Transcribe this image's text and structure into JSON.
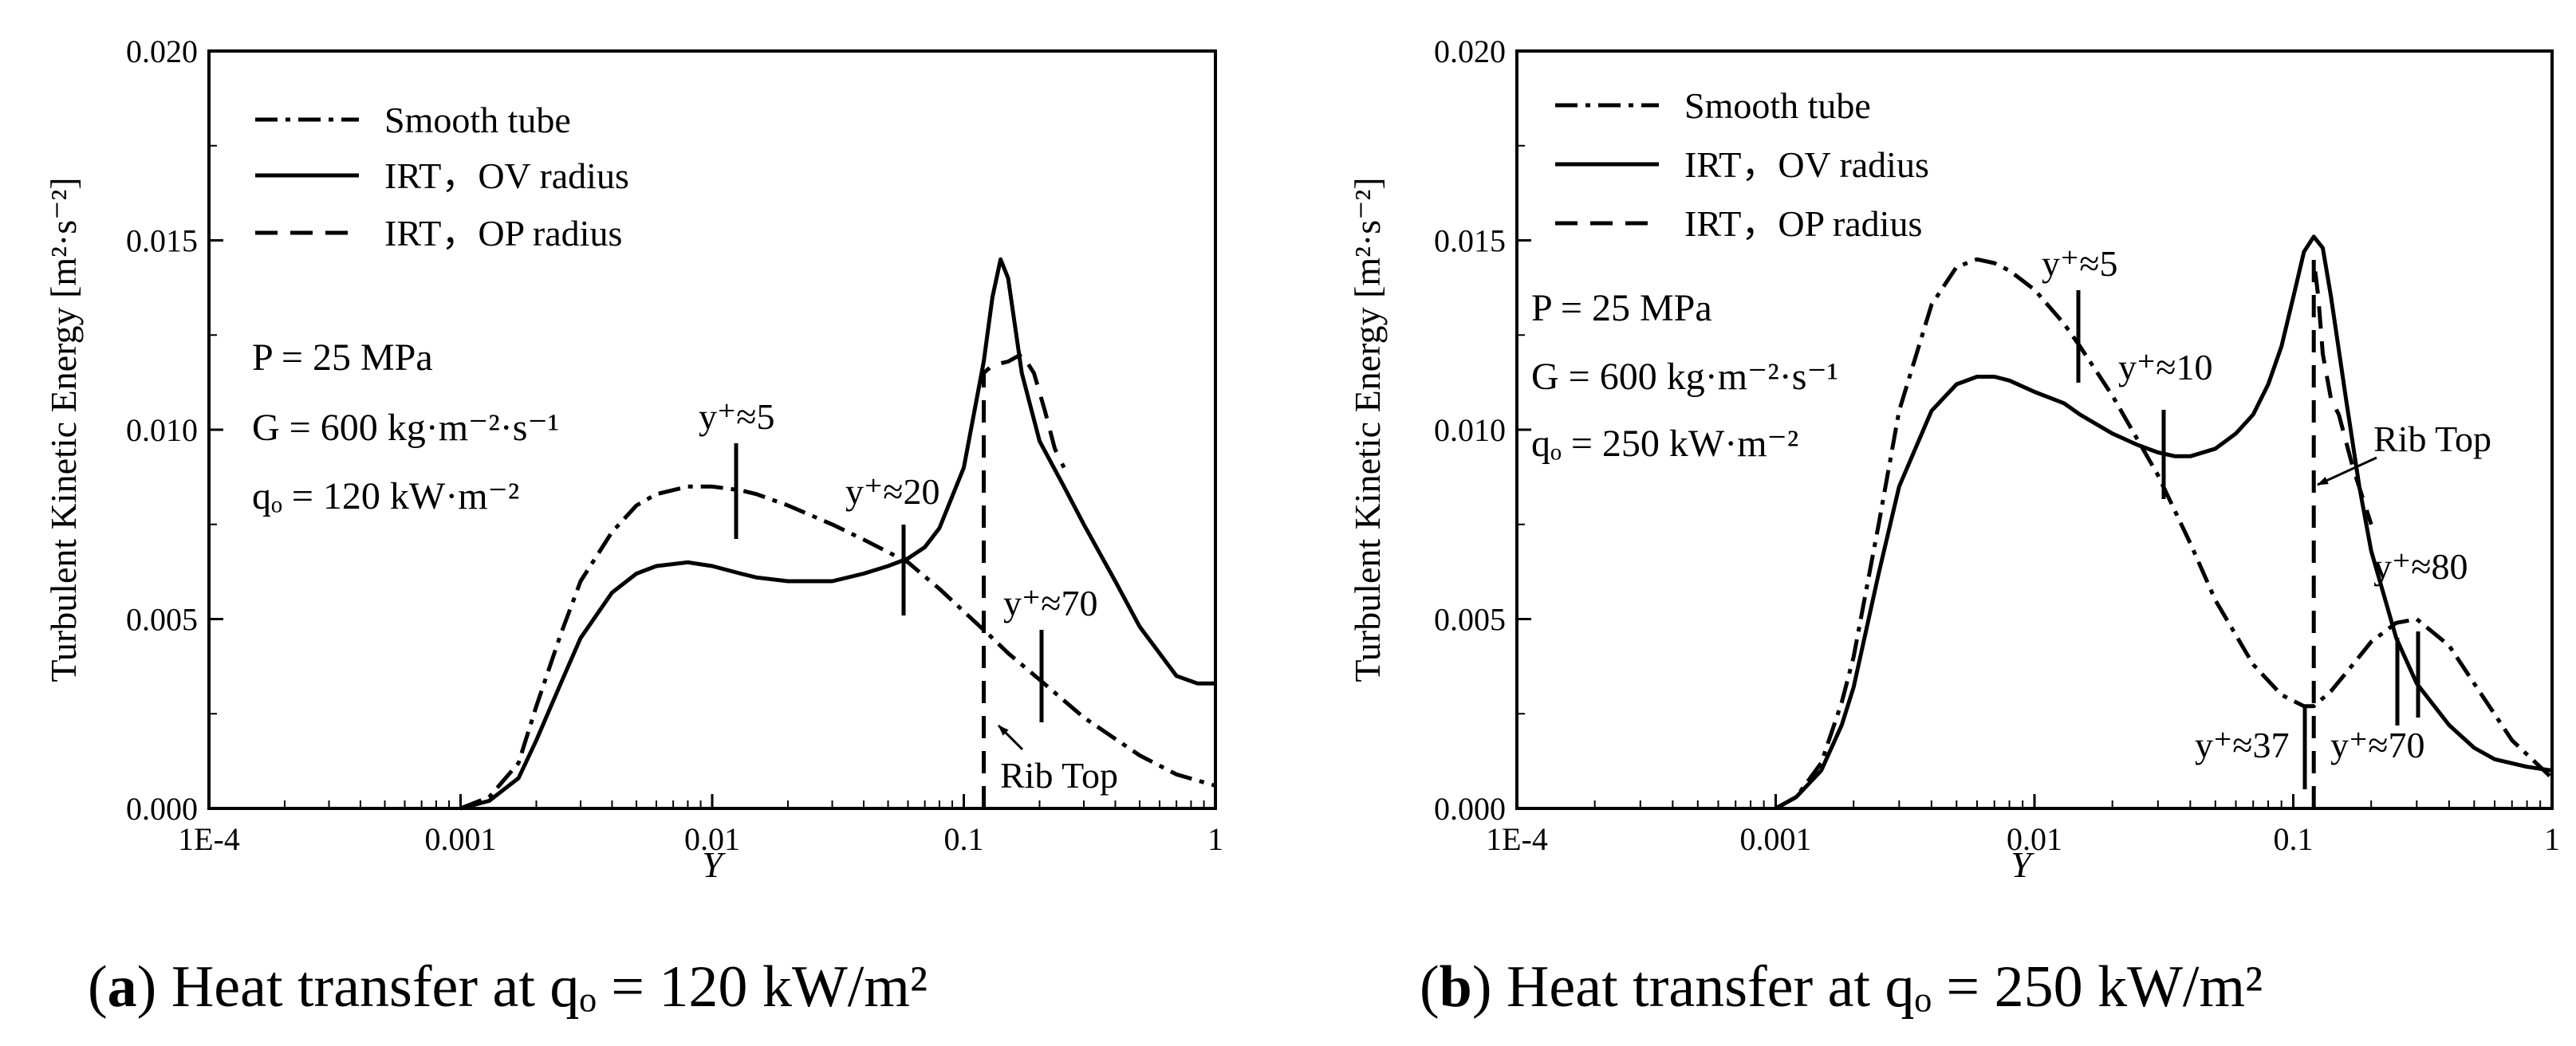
{
  "chart_data": [
    {
      "type": "line",
      "panel_label": "a",
      "caption": "Heat transfer at qₒ = 120 kW/m²",
      "xscale": "log",
      "xlim": [
        0.0001,
        1
      ],
      "ylim": [
        0.0,
        0.02
      ],
      "xticks": [
        0.0001,
        0.001,
        0.01,
        0.1,
        1
      ],
      "xtick_labels": [
        "1E-4",
        "0.001",
        "0.01",
        "0.1",
        "1"
      ],
      "yticks": [
        0.0,
        0.005,
        0.01,
        0.015,
        0.02
      ],
      "ytick_labels": [
        "0.000",
        "0.005",
        "0.010",
        "0.015",
        "0.020"
      ],
      "xlabel": "Y",
      "ylabel": "Turbulent Kinetic Energy [m²·s⁻²]",
      "legend_position": "top-left",
      "params": [
        "P = 25 MPa",
        "G = 600 kg·m⁻²·s⁻¹",
        "qₒ = 120 kW·m⁻²"
      ],
      "series": [
        {
          "name": "Smooth tube",
          "style": "dashdot",
          "x": [
            0.001,
            0.0013,
            0.0017,
            0.002,
            0.0025,
            0.003,
            0.004,
            0.005,
            0.006,
            0.008,
            0.01,
            0.013,
            0.015,
            0.02,
            0.03,
            0.04,
            0.06,
            0.08,
            0.1,
            0.13,
            0.15,
            0.2,
            0.3,
            0.5,
            0.7,
            1.0
          ],
          "y": [
            0.0,
            0.0003,
            0.0012,
            0.0027,
            0.0046,
            0.006,
            0.0073,
            0.008,
            0.0083,
            0.0085,
            0.0085,
            0.0084,
            0.0083,
            0.008,
            0.0075,
            0.0071,
            0.0065,
            0.0058,
            0.0052,
            0.0045,
            0.0041,
            0.0034,
            0.0024,
            0.0014,
            0.0009,
            0.0006
          ]
        },
        {
          "name": "IRT，OV radius",
          "style": "solid",
          "x": [
            0.001,
            0.0013,
            0.0017,
            0.002,
            0.0025,
            0.003,
            0.004,
            0.005,
            0.006,
            0.008,
            0.01,
            0.013,
            0.015,
            0.02,
            0.025,
            0.03,
            0.04,
            0.05,
            0.06,
            0.07,
            0.08,
            0.1,
            0.12,
            0.13,
            0.14,
            0.15,
            0.17,
            0.2,
            0.25,
            0.3,
            0.4,
            0.5,
            0.7,
            0.85,
            1.0
          ],
          "y": [
            0.0,
            0.0002,
            0.0008,
            0.0018,
            0.0033,
            0.0045,
            0.0057,
            0.0062,
            0.0064,
            0.0065,
            0.0064,
            0.0062,
            0.0061,
            0.006,
            0.006,
            0.006,
            0.0062,
            0.0064,
            0.0066,
            0.0069,
            0.0074,
            0.009,
            0.0118,
            0.0135,
            0.0145,
            0.014,
            0.0115,
            0.0097,
            0.0085,
            0.0075,
            0.006,
            0.0048,
            0.0035,
            0.0033,
            0.0033
          ]
        },
        {
          "name": "IRT，OP radius",
          "style": "dashed",
          "x": [
            0.12,
            0.12,
            0.13,
            0.15,
            0.17,
            0.19,
            0.21,
            0.23,
            0.25
          ],
          "y": [
            0.0,
            0.0115,
            0.0117,
            0.0118,
            0.012,
            0.0115,
            0.0105,
            0.0095,
            0.009
          ]
        }
      ],
      "annotations": [
        {
          "text": "y⁺≈5",
          "x": 0.0125,
          "y": 0.0085
        },
        {
          "text": "y⁺≈20",
          "x": 0.058,
          "y": 0.0065
        },
        {
          "text": "y⁺≈70",
          "x": 0.2,
          "y": 0.0034
        },
        {
          "text": "Rib Top",
          "x": 0.12,
          "y": 0.0022
        }
      ]
    },
    {
      "type": "line",
      "panel_label": "b",
      "caption": "Heat transfer at qₒ = 250 kW/m²",
      "xscale": "log",
      "xlim": [
        0.0001,
        1
      ],
      "ylim": [
        0.0,
        0.02
      ],
      "xticks": [
        0.0001,
        0.001,
        0.01,
        0.1,
        1
      ],
      "xtick_labels": [
        "1E-4",
        "0.001",
        "0.01",
        "0.1",
        "1"
      ],
      "yticks": [
        0.0,
        0.005,
        0.01,
        0.015,
        0.02
      ],
      "ytick_labels": [
        "0.000",
        "0.005",
        "0.010",
        "0.015",
        "0.020"
      ],
      "xlabel": "Y",
      "ylabel": "Turbulent Kinetic Energy [m²·s⁻²]",
      "legend_position": "top-left",
      "params": [
        "P = 25 MPa",
        "G = 600 kg·m⁻²·s⁻¹",
        "qₒ = 250 kW·m⁻²"
      ],
      "series": [
        {
          "name": "Smooth tube",
          "style": "dashdot",
          "x": [
            0.001,
            0.0012,
            0.0015,
            0.0018,
            0.002,
            0.0025,
            0.003,
            0.004,
            0.005,
            0.006,
            0.007,
            0.008,
            0.01,
            0.013,
            0.015,
            0.02,
            0.03,
            0.04,
            0.05,
            0.07,
            0.09,
            0.11,
            0.12,
            0.14,
            0.17,
            0.2,
            0.25,
            0.3,
            0.4,
            0.5,
            0.7,
            1.0
          ],
          "y": [
            0.0,
            0.0003,
            0.0012,
            0.0028,
            0.004,
            0.0075,
            0.0105,
            0.0133,
            0.0143,
            0.0145,
            0.0144,
            0.0142,
            0.0137,
            0.0128,
            0.0122,
            0.0109,
            0.0088,
            0.007,
            0.0055,
            0.0038,
            0.003,
            0.0027,
            0.0027,
            0.0031,
            0.0038,
            0.0044,
            0.0049,
            0.005,
            0.0043,
            0.0033,
            0.0018,
            0.0008
          ]
        },
        {
          "name": "IRT，OV radius",
          "style": "solid",
          "x": [
            0.001,
            0.0012,
            0.0015,
            0.0018,
            0.002,
            0.0025,
            0.003,
            0.004,
            0.005,
            0.006,
            0.007,
            0.008,
            0.01,
            0.013,
            0.015,
            0.02,
            0.025,
            0.03,
            0.035,
            0.04,
            0.05,
            0.06,
            0.07,
            0.08,
            0.09,
            0.1,
            0.11,
            0.12,
            0.13,
            0.14,
            0.16,
            0.18,
            0.2,
            0.25,
            0.3,
            0.4,
            0.5,
            0.6,
            0.8,
            1.0
          ],
          "y": [
            0.0,
            0.0003,
            0.001,
            0.0022,
            0.0032,
            0.0062,
            0.0085,
            0.0105,
            0.0112,
            0.0114,
            0.0114,
            0.0113,
            0.011,
            0.0107,
            0.0104,
            0.0099,
            0.0096,
            0.0094,
            0.0093,
            0.0093,
            0.0095,
            0.0099,
            0.0104,
            0.0112,
            0.0122,
            0.0135,
            0.0147,
            0.0151,
            0.0148,
            0.0135,
            0.0108,
            0.0085,
            0.0068,
            0.0045,
            0.0033,
            0.0022,
            0.0016,
            0.0013,
            0.0011,
            0.001
          ]
        },
        {
          "name": "IRT，OP radius",
          "style": "dashed",
          "x": [
            0.12,
            0.12,
            0.125,
            0.13,
            0.14,
            0.15,
            0.17,
            0.2
          ],
          "y": [
            0.0,
            0.0145,
            0.0135,
            0.012,
            0.0108,
            0.0104,
            0.009,
            0.0075
          ]
        }
      ],
      "annotations": [
        {
          "text": "y⁺≈5",
          "x": 0.016,
          "y": 0.0125
        },
        {
          "text": "y⁺≈10",
          "x": 0.031,
          "y": 0.0093
        },
        {
          "text": "Rib Top",
          "x": 0.12,
          "y": 0.0087
        },
        {
          "text": "y⁺≈80",
          "x": 0.3,
          "y": 0.0042
        },
        {
          "text": "y⁺≈37",
          "x": 0.12,
          "y": 0.0027
        },
        {
          "text": "y⁺≈70",
          "x": 0.25,
          "y": 0.0042
        }
      ]
    }
  ],
  "legend_labels": [
    "Smooth tube",
    "IRT，OV radius",
    "IRT，OP radius"
  ]
}
